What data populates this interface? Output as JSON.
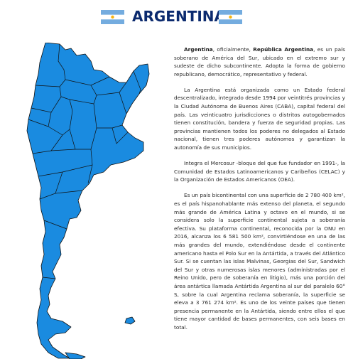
{
  "header": {
    "title": "ARGENTINA",
    "flag_colors": {
      "blue": "#74ACDF",
      "white": "#FFFFFF",
      "sun": "#F6B40E"
    }
  },
  "map": {
    "fill_color": "#1a8be0",
    "stroke_color": "#111111"
  },
  "article": {
    "p1": {
      "b1": "Argentina",
      "t1": ", oficialmente, ",
      "b2": "República Argentina",
      "t2": ", es un país soberano de América del Sur, ubicado en el extremo sur y sudeste de dicho subcontinente. Adopta la forma de gobierno republicano, democrático, representativo y federal."
    },
    "p2": "La Argentina está organizada como un Estado federal descentralizado, integrado desde 1994 por veintitrés provincias y la Ciudad Autónoma de Buenos Aires (CABA), capital federal del país. Las veinticuatro jurisdicciones o distritos autogobernados tienen constitución, bandera y fuerza de seguridad propias. Las provincias mantienen todos los poderes no delegados al Estado nacional, tienen tres poderes autónomos y garantizan la autonomía de sus municipios.",
    "p3": "Integra el Mercosur -bloque del que fue fundador en 1991-, la Comunidad de Estados Latinoamericanos y Caribeños (CELAC) y la Organización de Estados Americanos (OEA).",
    "p4": "Es un país bicontinental con una superficie de 2 780 400 km², es el país hispanohablante más extenso del planeta, el segundo más grande de América Latina y octavo en el mundo, si se considera solo la superficie continental sujeta a soberanía efectiva. Su plataforma continental, reconocida por la ONU en 2016, alcanza los 6 581 500 km², convirtiéndose en una de las más grandes del mundo, extendiéndose desde el continente americano hasta el Polo Sur en la Antártida, a través del Atlántico Sur. Si se cuentan las islas Malvinas, Georgias del Sur, Sandwich del Sur y otras numerosas islas menores (administradas por el Reino Unido, pero de soberanía en litigio), más una porción del área antártica llamada Antártida Argentina al sur del paralelo 60° S, sobre la cual Argentina reclama soberanía, la superficie se eleva a 3 761 274 km². Es uno de los veinte países que tienen presencia permanente en la Antártida, siendo entre ellos el que tiene mayor cantidad de bases permanentes, con seis bases en total."
  }
}
